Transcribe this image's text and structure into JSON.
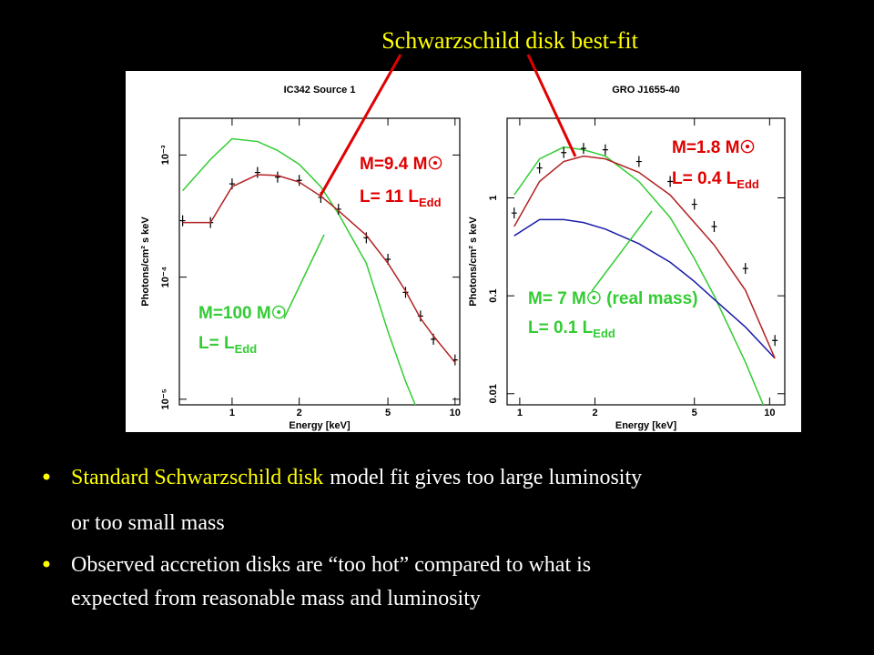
{
  "slide": {
    "header": "Schwarzschild disk best-fit",
    "annotations_red": [
      {
        "mass": "M=9.4 M☉",
        "lum": "L= 11 L",
        "sub": "Edd"
      },
      {
        "mass": "M=1.8 M☉",
        "lum": "L= 0.4 L",
        "sub": "Edd"
      }
    ],
    "annotations_green": [
      {
        "mass": "M=100 M☉",
        "lum": "L=  L",
        "sub": "Edd"
      },
      {
        "mass": "M= 7 M☉ (real mass)",
        "lum": "L=  0.1 L",
        "sub": "Edd"
      }
    ],
    "bullets": [
      {
        "highlight": "Standard Schwarzschild  disk",
        "text": "model fit gives too large luminosity",
        "cont": "or too small mass"
      },
      {
        "text": "Observed accretion disks are “too hot” compared to what is",
        "cont": "expected from reasonable mass and luminosity"
      }
    ]
  },
  "chart_data": [
    {
      "type": "line",
      "title": "IC342 Source 1",
      "x_label": "Energy [keV]",
      "y_label": "Photons/cm² s keV",
      "log_x": true,
      "log_y": true,
      "xlim": [
        0.58,
        10.5
      ],
      "ylim": [
        9e-06,
        0.002
      ],
      "xticks": [
        1,
        2,
        5,
        10
      ],
      "yticks": [
        {
          "value": 0.001,
          "label": "10⁻³"
        },
        {
          "value": 0.0001,
          "label": "10⁻⁴"
        },
        {
          "value": 1e-05,
          "label": "10⁻⁵"
        }
      ],
      "x": [
        0.6,
        0.8,
        1.0,
        1.3,
        1.6,
        2,
        2.5,
        3,
        4,
        5,
        6,
        7,
        8,
        10
      ],
      "series": [
        {
          "color": "#33cc33",
          "values": [
            0.00051,
            0.00092,
            0.00136,
            0.00129,
            0.00109,
            0.00084,
            0.00055,
            0.00033,
            0.00013,
            3.6e-05,
            1.4e-05,
            7.1e-06,
            null,
            null
          ]
        },
        {
          "color": "#000000",
          "markers": true,
          "values": [
            0.00029,
            0.00028,
            0.00058,
            0.00072,
            0.00066,
            0.00062,
            0.00045,
            0.00036,
            0.00021,
            0.00014,
            7.5e-05,
            4.8e-05,
            3.1e-05,
            2.1e-05
          ]
        },
        {
          "color": "#b22222",
          "values": [
            0.00028,
            0.00028,
            0.00055,
            0.00069,
            0.00068,
            0.0006,
            0.00046,
            0.00035,
            0.00022,
            0.00013,
            7.7e-05,
            4.6e-05,
            3.3e-05,
            2e-05
          ]
        }
      ]
    },
    {
      "type": "line",
      "title": "GRO J1655-40",
      "x_label": "Energy [keV]",
      "y_label": "Photons/cm² s keV",
      "log_x": true,
      "log_y": true,
      "xlim": [
        0.89,
        11.5
      ],
      "ylim": [
        0.0077,
        6.5
      ],
      "xticks": [
        1,
        2,
        5,
        10
      ],
      "yticks": [
        1,
        0.1,
        0.01
      ],
      "x": [
        0.95,
        1.2,
        1.5,
        1.8,
        2.2,
        3,
        4,
        5,
        6,
        8,
        10.5
      ],
      "series": [
        {
          "color": "#33cc33",
          "values": [
            1.07,
            2.5,
            3.3,
            3.1,
            2.67,
            1.47,
            0.63,
            0.24,
            0.1,
            0.021,
            0.004
          ]
        },
        {
          "color": "#1a1aaa",
          "values": [
            0.41,
            0.6,
            0.6,
            0.56,
            0.48,
            0.34,
            0.22,
            0.14,
            0.092,
            0.048,
            0.023
          ]
        },
        {
          "color": "#000000",
          "markers": true,
          "values": [
            0.7,
            2.02,
            2.9,
            3.2,
            3.1,
            2.35,
            1.47,
            0.86,
            0.51,
            0.19,
            0.035
          ]
        },
        {
          "color": "#b22222",
          "values": [
            0.51,
            1.47,
            2.35,
            2.67,
            2.5,
            1.82,
            1.07,
            0.56,
            0.33,
            0.114,
            0.023
          ]
        }
      ]
    }
  ]
}
